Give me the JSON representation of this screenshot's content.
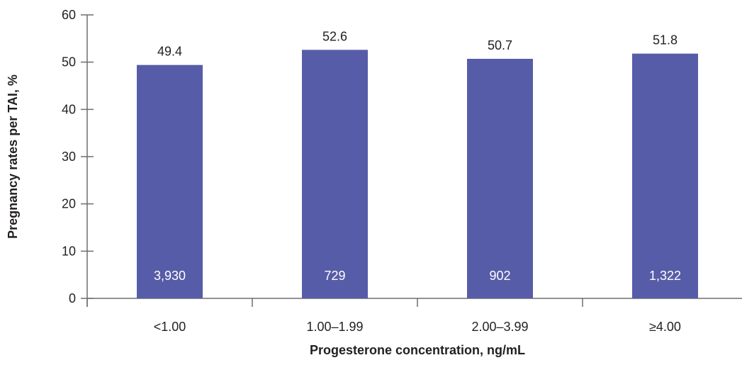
{
  "chart_data": {
    "type": "bar",
    "categories": [
      "<1.00",
      "1.00–1.99",
      "2.00–3.99",
      "≥4.00"
    ],
    "values": [
      49.4,
      52.6,
      50.7,
      51.8
    ],
    "value_labels": [
      "49.4",
      "52.6",
      "50.7",
      "51.8"
    ],
    "counts": [
      "3,930",
      "729",
      "902",
      "1,322"
    ],
    "title": "",
    "xlabel": "Progesterone concentration, ng/mL",
    "ylabel": "Pregnancy rates per TAI, %",
    "ylim": [
      0,
      60
    ],
    "yticks": [
      0,
      10,
      20,
      30,
      40,
      50,
      60
    ],
    "grid": false,
    "legend": "none",
    "bar_color": "#575ca8",
    "axis_color": "#6d6e71",
    "text_color": "#231f20"
  }
}
